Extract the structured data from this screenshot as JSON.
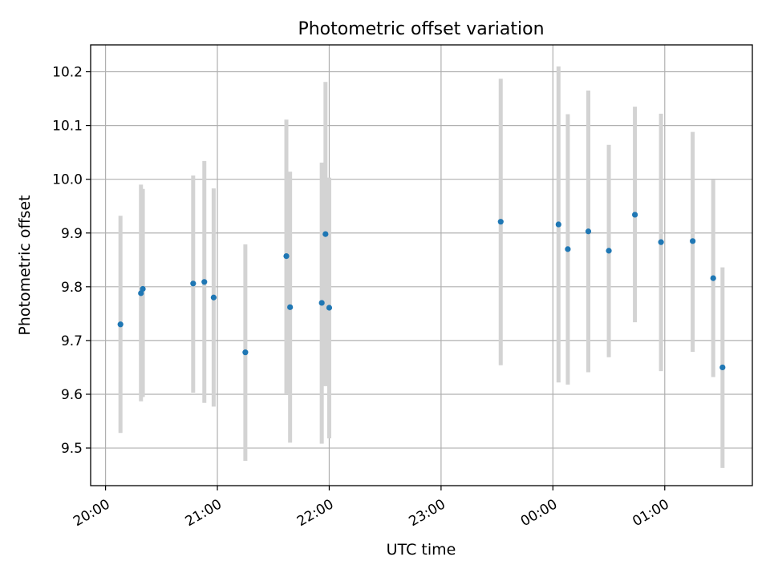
{
  "chart_data": {
    "type": "scatter",
    "title": "Photometric offset variation",
    "xlabel": "UTC time",
    "ylabel": "Photometric offset",
    "x_tick_labels": [
      "20:00",
      "21:00",
      "22:00",
      "23:00",
      "00:00",
      "01:00"
    ],
    "y_tick_labels": [
      "9.5",
      "9.6",
      "9.7",
      "9.8",
      "9.9",
      "10.0",
      "10.1",
      "10.2"
    ],
    "xlim": [
      "19:52",
      "01:47"
    ],
    "ylim": [
      9.43,
      10.25
    ],
    "grid": true,
    "point_color": "#1f77b4",
    "errorbar_color": "#d3d3d3",
    "points": [
      {
        "x": "20:08",
        "y": 9.73,
        "low": 9.528,
        "high": 9.932
      },
      {
        "x": "20:19",
        "y": 9.788,
        "low": 9.587,
        "high": 9.99
      },
      {
        "x": "20:20",
        "y": 9.796,
        "low": 9.595,
        "high": 9.982
      },
      {
        "x": "20:47",
        "y": 9.806,
        "low": 9.603,
        "high": 10.007
      },
      {
        "x": "20:53",
        "y": 9.809,
        "low": 9.584,
        "high": 10.034
      },
      {
        "x": "20:58",
        "y": 9.78,
        "low": 9.577,
        "high": 9.983
      },
      {
        "x": "21:15",
        "y": 9.678,
        "low": 9.476,
        "high": 9.879
      },
      {
        "x": "21:37",
        "y": 9.857,
        "low": 9.6,
        "high": 10.111
      },
      {
        "x": "21:39",
        "y": 9.762,
        "low": 9.51,
        "high": 10.014
      },
      {
        "x": "21:56",
        "y": 9.77,
        "low": 9.508,
        "high": 10.031
      },
      {
        "x": "21:58",
        "y": 9.898,
        "low": 9.615,
        "high": 10.181
      },
      {
        "x": "22:00",
        "y": 9.761,
        "low": 9.518,
        "high": 10.003
      },
      {
        "x": "23:32",
        "y": 9.921,
        "low": 9.654,
        "high": 10.187
      },
      {
        "x": "00:03",
        "y": 9.916,
        "low": 9.622,
        "high": 10.21
      },
      {
        "x": "00:08",
        "y": 9.87,
        "low": 9.618,
        "high": 10.121
      },
      {
        "x": "00:19",
        "y": 9.903,
        "low": 9.641,
        "high": 10.165
      },
      {
        "x": "00:30",
        "y": 9.867,
        "low": 9.669,
        "high": 10.064
      },
      {
        "x": "00:44",
        "y": 9.934,
        "low": 9.734,
        "high": 10.135
      },
      {
        "x": "00:58",
        "y": 9.883,
        "low": 9.643,
        "high": 10.122
      },
      {
        "x": "01:15",
        "y": 9.885,
        "low": 9.679,
        "high": 10.088
      },
      {
        "x": "01:26",
        "y": 9.816,
        "low": 9.632,
        "high": 9.999
      },
      {
        "x": "01:31",
        "y": 9.65,
        "low": 9.463,
        "high": 9.836
      }
    ]
  }
}
